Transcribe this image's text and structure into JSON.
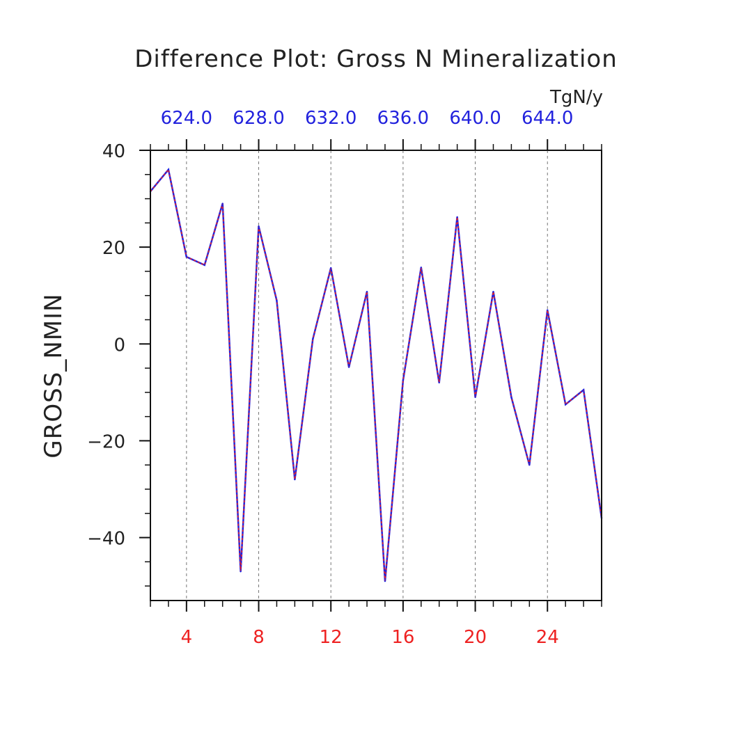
{
  "chart_data": {
    "type": "line",
    "title": "Difference Plot: Gross N Mineralization",
    "ylabel": "GROSS_NMIN",
    "units_label": "TgN/y",
    "xlim": [
      2,
      27
    ],
    "ylim": [
      -53,
      40
    ],
    "y_ticks": [
      {
        "value": 40,
        "label": "40"
      },
      {
        "value": 20,
        "label": "20"
      },
      {
        "value": 0,
        "label": "0"
      },
      {
        "value": -20,
        "label": "−20"
      },
      {
        "value": -40,
        "label": "−40"
      }
    ],
    "x_ticks_bottom": [
      {
        "value": 4,
        "label": "4"
      },
      {
        "value": 8,
        "label": "8"
      },
      {
        "value": 12,
        "label": "12"
      },
      {
        "value": 16,
        "label": "16"
      },
      {
        "value": 20,
        "label": "20"
      },
      {
        "value": 24,
        "label": "24"
      }
    ],
    "x_ticks_top": [
      {
        "value": 4,
        "label": "624.0"
      },
      {
        "value": 8,
        "label": "628.0"
      },
      {
        "value": 12,
        "label": "632.0"
      },
      {
        "value": 16,
        "label": "636.0"
      },
      {
        "value": 20,
        "label": "640.0"
      },
      {
        "value": 24,
        "label": "644.0"
      }
    ],
    "grid": "vertical dashed lines at major x ticks",
    "colors": {
      "series": "#2222dd",
      "overlay": "#ee2222",
      "bottom_ticks": "#ee2222",
      "top_ticks": "#2222dd"
    },
    "x": [
      2,
      3,
      4,
      5,
      6,
      7,
      8,
      9,
      10,
      11,
      12,
      13,
      14,
      15,
      16,
      17,
      18,
      19,
      20,
      21,
      22,
      23,
      24,
      25,
      26,
      27
    ],
    "series": [
      {
        "values": [
          31.5,
          36,
          18,
          16.3,
          29,
          -47,
          24.3,
          9,
          -28,
          1,
          15.7,
          -4.8,
          10.8,
          -49,
          -7.5,
          15.8,
          -8,
          26.2,
          -11,
          10.8,
          -11,
          -25,
          7,
          -12.5,
          -9.5,
          -36
        ]
      }
    ]
  }
}
